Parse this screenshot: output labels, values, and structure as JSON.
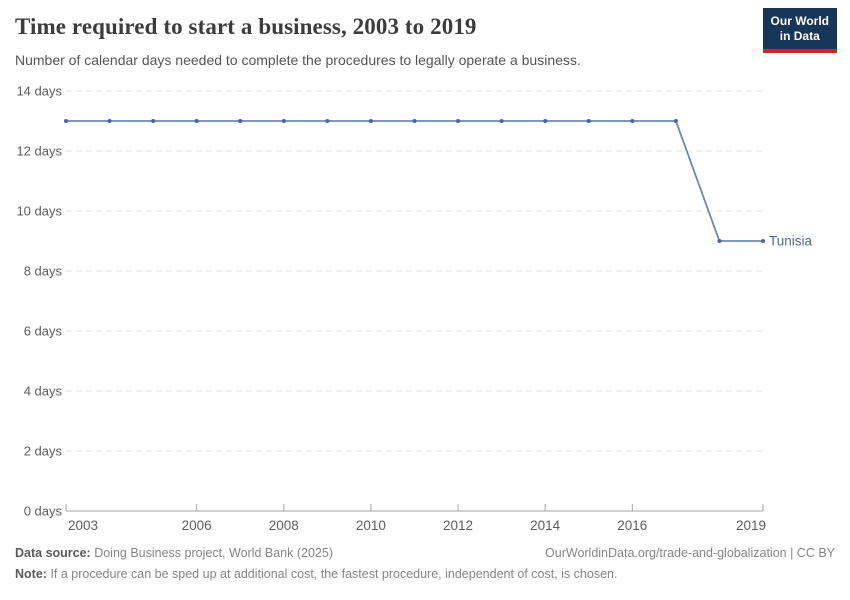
{
  "header": {
    "title": "Time required to start a business, 2003 to 2019",
    "subtitle": "Number of calendar days needed to complete the procedures to legally operate a business."
  },
  "logo": {
    "line1": "Our World",
    "line2": "in Data",
    "bg_color": "#18355a",
    "accent_color": "#c7292b"
  },
  "chart_data": {
    "type": "line",
    "title": "Time required to start a business, 2003 to 2019",
    "xlabel": "",
    "ylabel": "calendar days",
    "x": [
      2003,
      2004,
      2005,
      2006,
      2007,
      2008,
      2009,
      2010,
      2011,
      2012,
      2013,
      2014,
      2015,
      2016,
      2017,
      2018,
      2019
    ],
    "series": [
      {
        "name": "Tunisia",
        "values": [
          13,
          13,
          13,
          13,
          13,
          13,
          13,
          13,
          13,
          13,
          13,
          13,
          13,
          13,
          13,
          9,
          9
        ],
        "line_color": "#6d87b4",
        "marker_color": "#46659b",
        "label_color": "#4c6a9c"
      }
    ],
    "ylim": [
      0,
      14
    ],
    "yticks": [
      0,
      2,
      4,
      6,
      8,
      10,
      12,
      14
    ],
    "ytick_format": "{v} days",
    "xticks": [
      2003,
      2006,
      2008,
      2010,
      2012,
      2014,
      2016,
      2019
    ],
    "grid": "horizontal-dashed",
    "gridline_color": "#dcdcdc",
    "axis_color": "#a3a3a3",
    "tick_label_color": "#5d5d5d",
    "legend": "end-of-line-label"
  },
  "footer": {
    "source_label": "Data source:",
    "source_text": " Doing Business project, World Bank (2025)",
    "link": "OurWorldinData.org/trade-and-globalization | CC BY",
    "note_label": "Note:",
    "note_text": " If a procedure can be sped up at additional cost, the fastest procedure, independent of cost, is chosen."
  }
}
